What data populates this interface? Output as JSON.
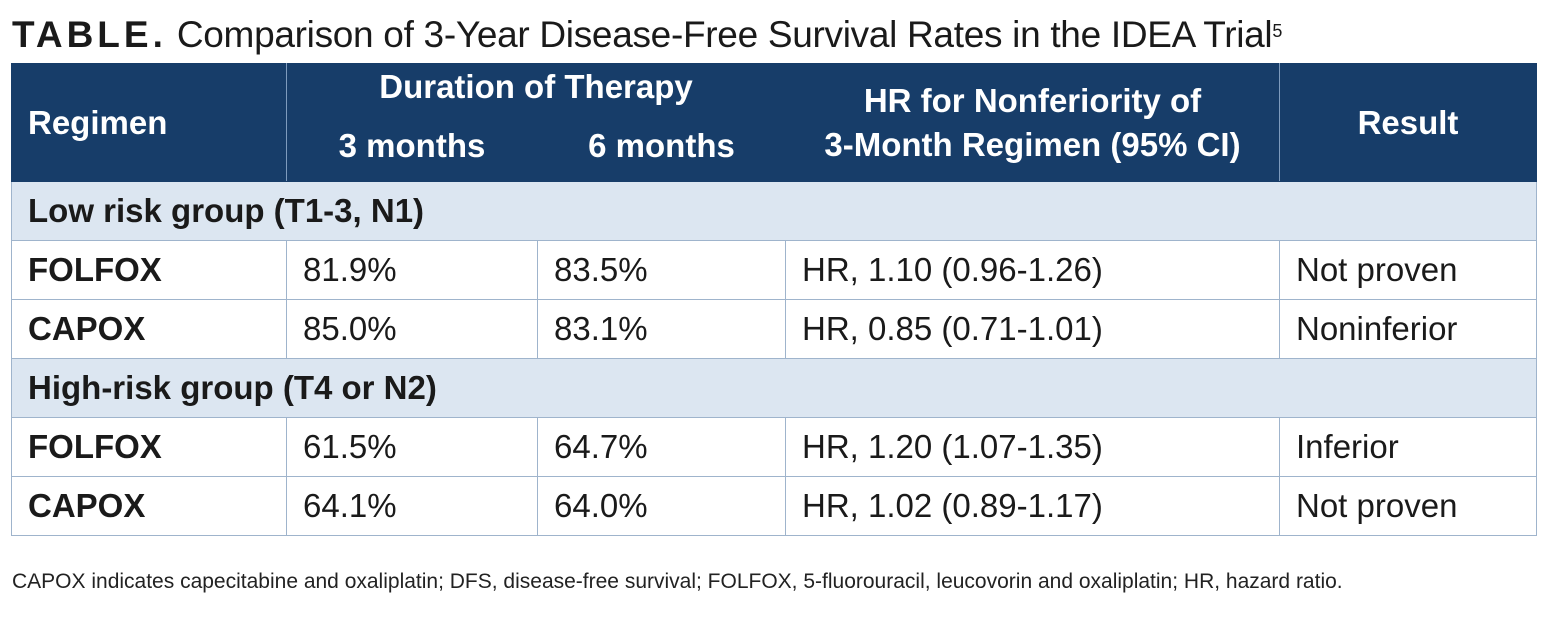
{
  "title": {
    "lead": "TABLE.",
    "text": "Comparison of 3-Year Disease-Free Survival Rates in the IDEA Trial",
    "ref": "5"
  },
  "header": {
    "regimen": "Regimen",
    "duration": "Duration of Therapy",
    "months3": "3 months",
    "months6": "6 months",
    "hr_line1": "HR for Nonferiority of",
    "hr_line2": "3-Month Regimen (95% CI)",
    "result": "Result"
  },
  "groups": [
    {
      "label": "Low risk group (T1-3, N1)",
      "rows": [
        {
          "regimen": "FOLFOX",
          "m3": "81.9%",
          "m6": "83.5%",
          "hr": "HR, 1.10 (0.96-1.26)",
          "result": "Not proven"
        },
        {
          "regimen": "CAPOX",
          "m3": "85.0%",
          "m6": "83.1%",
          "hr": "HR, 0.85 (0.71-1.01)",
          "result": "Noninferior"
        }
      ]
    },
    {
      "label": "High-risk group (T4 or N2)",
      "rows": [
        {
          "regimen": "FOLFOX",
          "m3": "61.5%",
          "m6": "64.7%",
          "hr": "HR, 1.20 (1.07-1.35)",
          "result": "Inferior"
        },
        {
          "regimen": "CAPOX",
          "m3": "64.1%",
          "m6": "64.0%",
          "hr": "HR, 1.02 (0.89-1.17)",
          "result": "Not proven"
        }
      ]
    }
  ],
  "footnote": "CAPOX indicates capecitabine and oxaliplatin; DFS, disease-free survival; FOLFOX, 5-fluorouracil, leucovorin and oxaliplatin; HR, hazard ratio."
}
